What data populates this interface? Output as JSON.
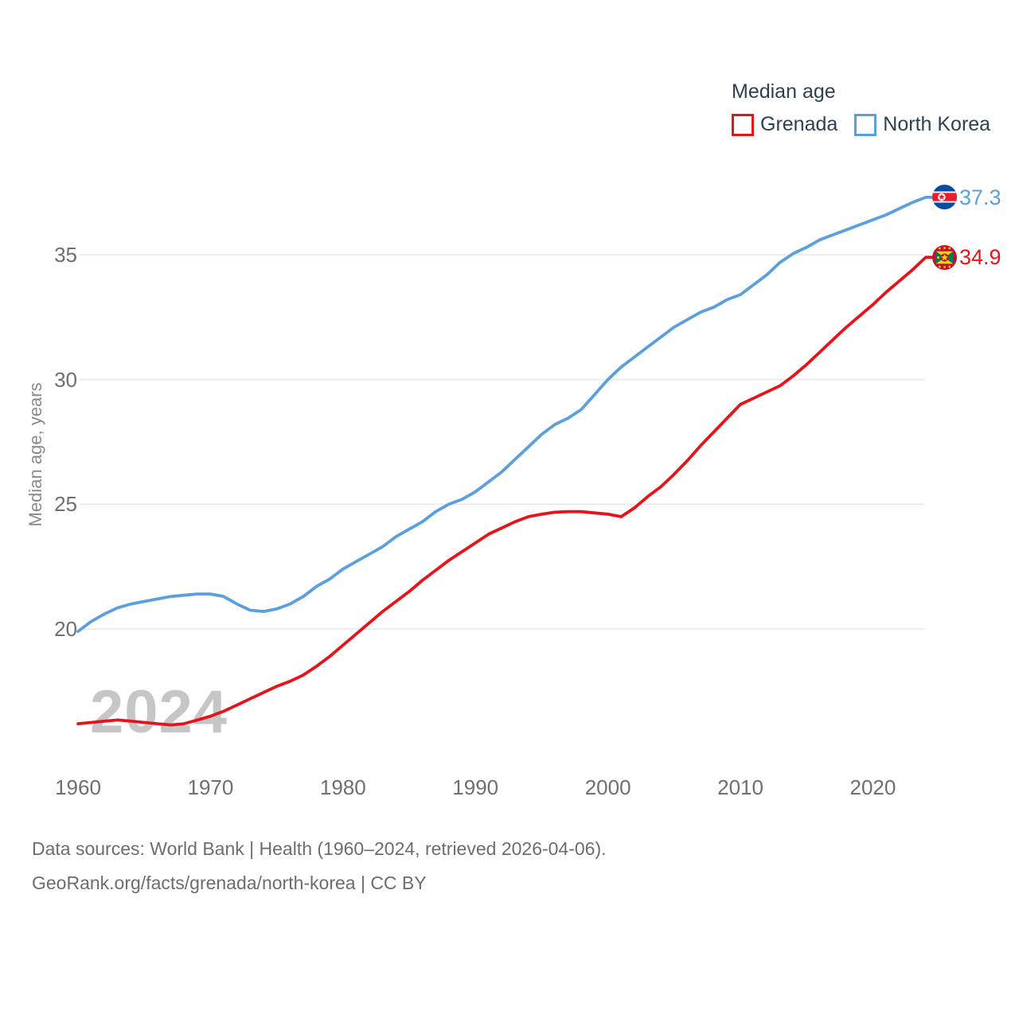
{
  "page": {
    "background": "#ffffff"
  },
  "legend": {
    "title": "Median age",
    "items": [
      {
        "label": "Grenada",
        "color": "#e8131a"
      },
      {
        "label": "North Korea",
        "color": "#5b9fdd"
      }
    ]
  },
  "chart_data": {
    "type": "line",
    "title": "Median age",
    "xlabel": "",
    "ylabel": "Median age, years",
    "xlim": [
      1960,
      2024
    ],
    "ylim": [
      16,
      37.5
    ],
    "xticks": [
      1960,
      1970,
      1980,
      1990,
      2000,
      2010,
      2020
    ],
    "yticks": [
      20,
      25,
      30,
      35
    ],
    "grid": "horizontal",
    "legend_position": "top-right",
    "x": [
      1960,
      1961,
      1962,
      1963,
      1964,
      1965,
      1966,
      1967,
      1968,
      1969,
      1970,
      1971,
      1972,
      1973,
      1974,
      1975,
      1976,
      1977,
      1978,
      1979,
      1980,
      1981,
      1982,
      1983,
      1984,
      1985,
      1986,
      1987,
      1988,
      1989,
      1990,
      1991,
      1992,
      1993,
      1994,
      1995,
      1996,
      1997,
      1998,
      1999,
      2000,
      2001,
      2002,
      2003,
      2004,
      2005,
      2006,
      2007,
      2008,
      2009,
      2010,
      2011,
      2012,
      2013,
      2014,
      2015,
      2016,
      2017,
      2018,
      2019,
      2020,
      2021,
      2022,
      2023,
      2024
    ],
    "series": [
      {
        "name": "Grenada",
        "color": "#e8131a",
        "flag": "grenada",
        "values": [
          16.2,
          16.25,
          16.3,
          16.35,
          16.3,
          16.25,
          16.2,
          16.15,
          16.2,
          16.35,
          16.5,
          16.7,
          16.95,
          17.2,
          17.45,
          17.7,
          17.9,
          18.15,
          18.5,
          18.9,
          19.35,
          19.8,
          20.25,
          20.7,
          21.1,
          21.5,
          21.95,
          22.35,
          22.75,
          23.1,
          23.45,
          23.8,
          24.05,
          24.3,
          24.5,
          24.6,
          24.68,
          24.7,
          24.7,
          24.65,
          24.6,
          24.5,
          24.85,
          25.3,
          25.7,
          26.2,
          26.75,
          27.35,
          27.9,
          28.45,
          29.0,
          29.25,
          29.5,
          29.75,
          30.15,
          30.6,
          31.1,
          31.6,
          32.1,
          32.55,
          33.0,
          33.5,
          33.95,
          34.4,
          34.9
        ]
      },
      {
        "name": "North Korea",
        "color": "#5b9fdd",
        "flag": "north-korea",
        "values": [
          19.9,
          20.3,
          20.6,
          20.85,
          21.0,
          21.1,
          21.2,
          21.3,
          21.35,
          21.4,
          21.4,
          21.3,
          21.0,
          20.75,
          20.7,
          20.8,
          21.0,
          21.3,
          21.7,
          22.0,
          22.4,
          22.7,
          23.0,
          23.3,
          23.7,
          24.0,
          24.3,
          24.7,
          25.0,
          25.2,
          25.5,
          25.9,
          26.3,
          26.8,
          27.3,
          27.8,
          28.2,
          28.45,
          28.8,
          29.4,
          30.0,
          30.5,
          30.9,
          31.3,
          31.7,
          32.1,
          32.4,
          32.7,
          32.9,
          33.2,
          33.4,
          33.8,
          34.2,
          34.7,
          35.05,
          35.3,
          35.6,
          35.8,
          36.0,
          36.2,
          36.4,
          36.6,
          36.85,
          37.1,
          37.3
        ]
      }
    ],
    "end_labels": {
      "grenada": "34.9",
      "north_korea": "37.3"
    }
  },
  "watermark": "2024",
  "footer": {
    "line1": "Data sources: World Bank | Health (1960–2024, retrieved 2026-04-06).",
    "line2": "GeoRank.org/facts/grenada/north-korea | CC BY"
  }
}
